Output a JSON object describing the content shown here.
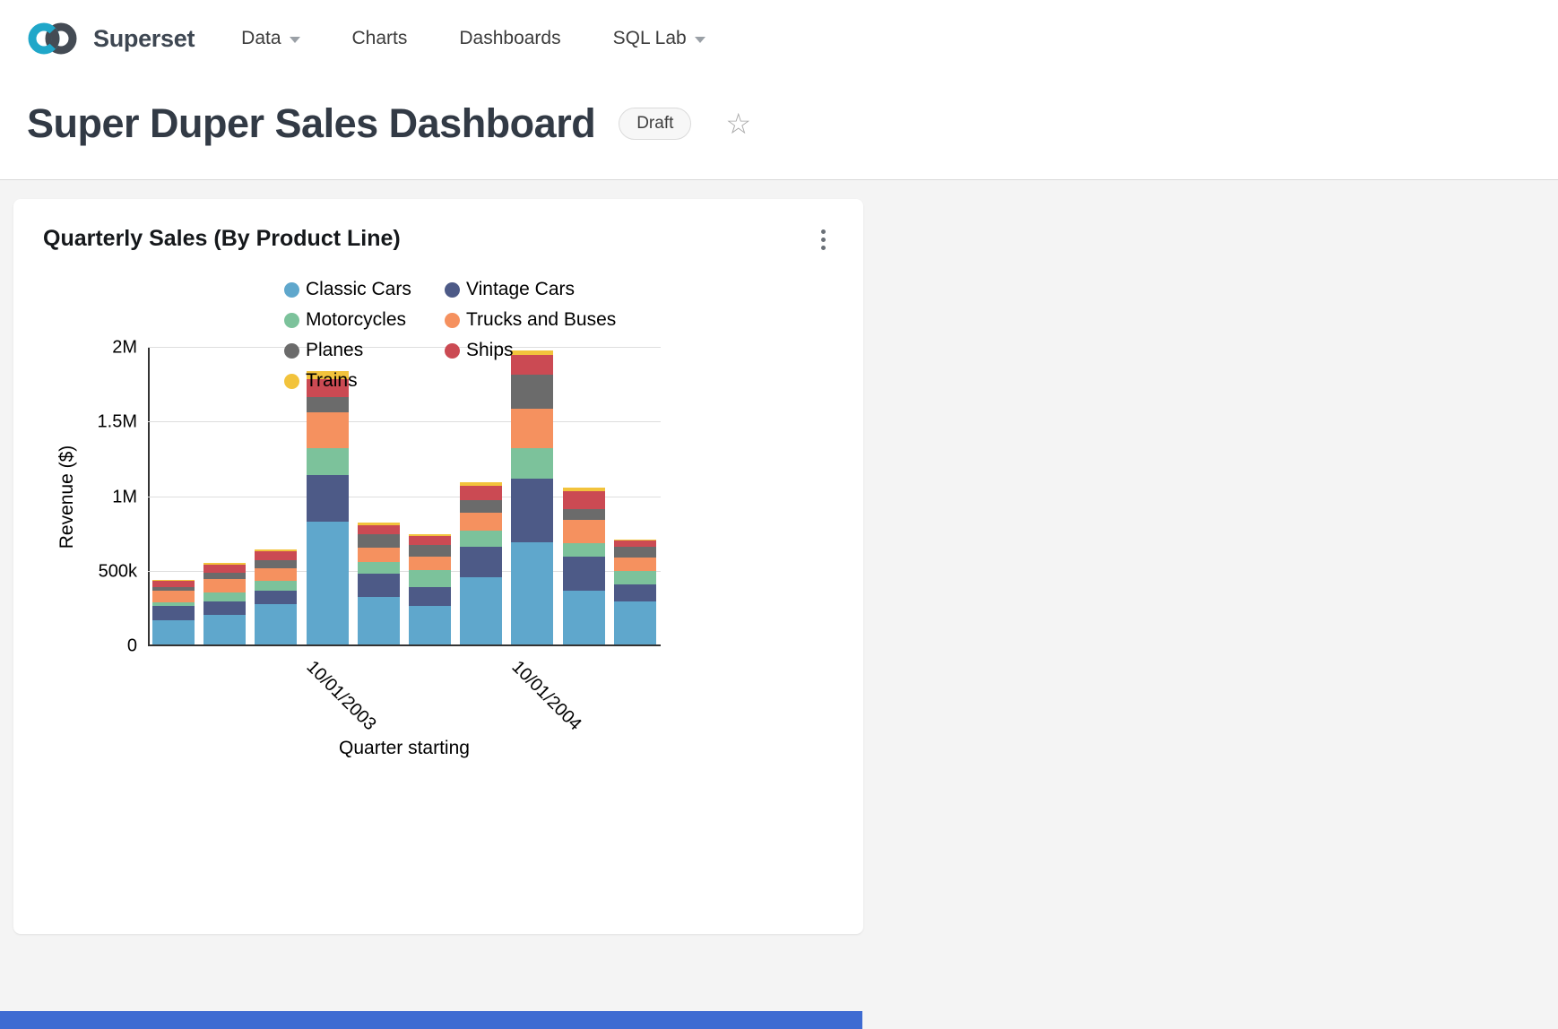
{
  "colors": {
    "brand_teal": "#20A7C9",
    "brand_dark": "#444B54",
    "page_bg": "#F4F4F4",
    "footer_bar": "#3E6BD2"
  },
  "nav": {
    "brand": "Superset",
    "items": [
      {
        "label": "Data",
        "caret": true
      },
      {
        "label": "Charts",
        "caret": false
      },
      {
        "label": "Dashboards",
        "caret": false
      },
      {
        "label": "SQL Lab",
        "caret": true
      }
    ]
  },
  "header": {
    "title": "Super Duper Sales Dashboard",
    "badge": "Draft"
  },
  "card": {
    "title": "Quarterly Sales (By Product Line)"
  },
  "chart_data": {
    "type": "bar",
    "stacked": true,
    "title": "Quarterly Sales (By Product Line)",
    "xlabel": "Quarter starting",
    "ylabel": "Revenue ($)",
    "ylim": [
      0,
      2000000
    ],
    "grid": true,
    "legend_position": "top-center-two-columns",
    "yticks": [
      {
        "value": 0,
        "label": "0"
      },
      {
        "value": 500000,
        "label": "500k"
      },
      {
        "value": 1000000,
        "label": "1M"
      },
      {
        "value": 1500000,
        "label": "1.5M"
      },
      {
        "value": 2000000,
        "label": "2M"
      }
    ],
    "categories": [
      "",
      "",
      "",
      "10/01/2003",
      "",
      "",
      "",
      "10/01/2004",
      "",
      ""
    ],
    "x_ticks": [
      {
        "index": 3,
        "label": "10/01/2003"
      },
      {
        "index": 7,
        "label": "10/01/2004"
      }
    ],
    "series": [
      {
        "name": "Classic Cars",
        "color": "#5FA7CC",
        "values": [
          173000,
          208000,
          280000,
          833000,
          333000,
          268000,
          464000,
          696000,
          375000,
          298000
        ]
      },
      {
        "name": "Vintage Cars",
        "color": "#4D5A87",
        "values": [
          95000,
          90000,
          95000,
          316000,
          155000,
          131000,
          202000,
          428000,
          226000,
          119000
        ]
      },
      {
        "name": "Motorcycles",
        "color": "#7CC29B",
        "values": [
          24000,
          60000,
          65000,
          178000,
          77000,
          113000,
          107000,
          202000,
          89000,
          89000
        ]
      },
      {
        "name": "Trucks and Buses",
        "color": "#F5915F",
        "values": [
          83000,
          95000,
          83000,
          238000,
          95000,
          89000,
          125000,
          268000,
          155000,
          89000
        ]
      },
      {
        "name": "Planes",
        "color": "#6B6B6B",
        "values": [
          24000,
          42000,
          54000,
          107000,
          89000,
          77000,
          83000,
          226000,
          77000,
          71000
        ]
      },
      {
        "name": "Ships",
        "color": "#CB4A53",
        "values": [
          41000,
          54000,
          60000,
          119000,
          60000,
          60000,
          95000,
          131000,
          119000,
          42000
        ]
      },
      {
        "name": "Trains",
        "color": "#F2C33C",
        "values": [
          6000,
          12000,
          12000,
          54000,
          18000,
          12000,
          24000,
          30000,
          24000,
          6000
        ]
      }
    ]
  }
}
